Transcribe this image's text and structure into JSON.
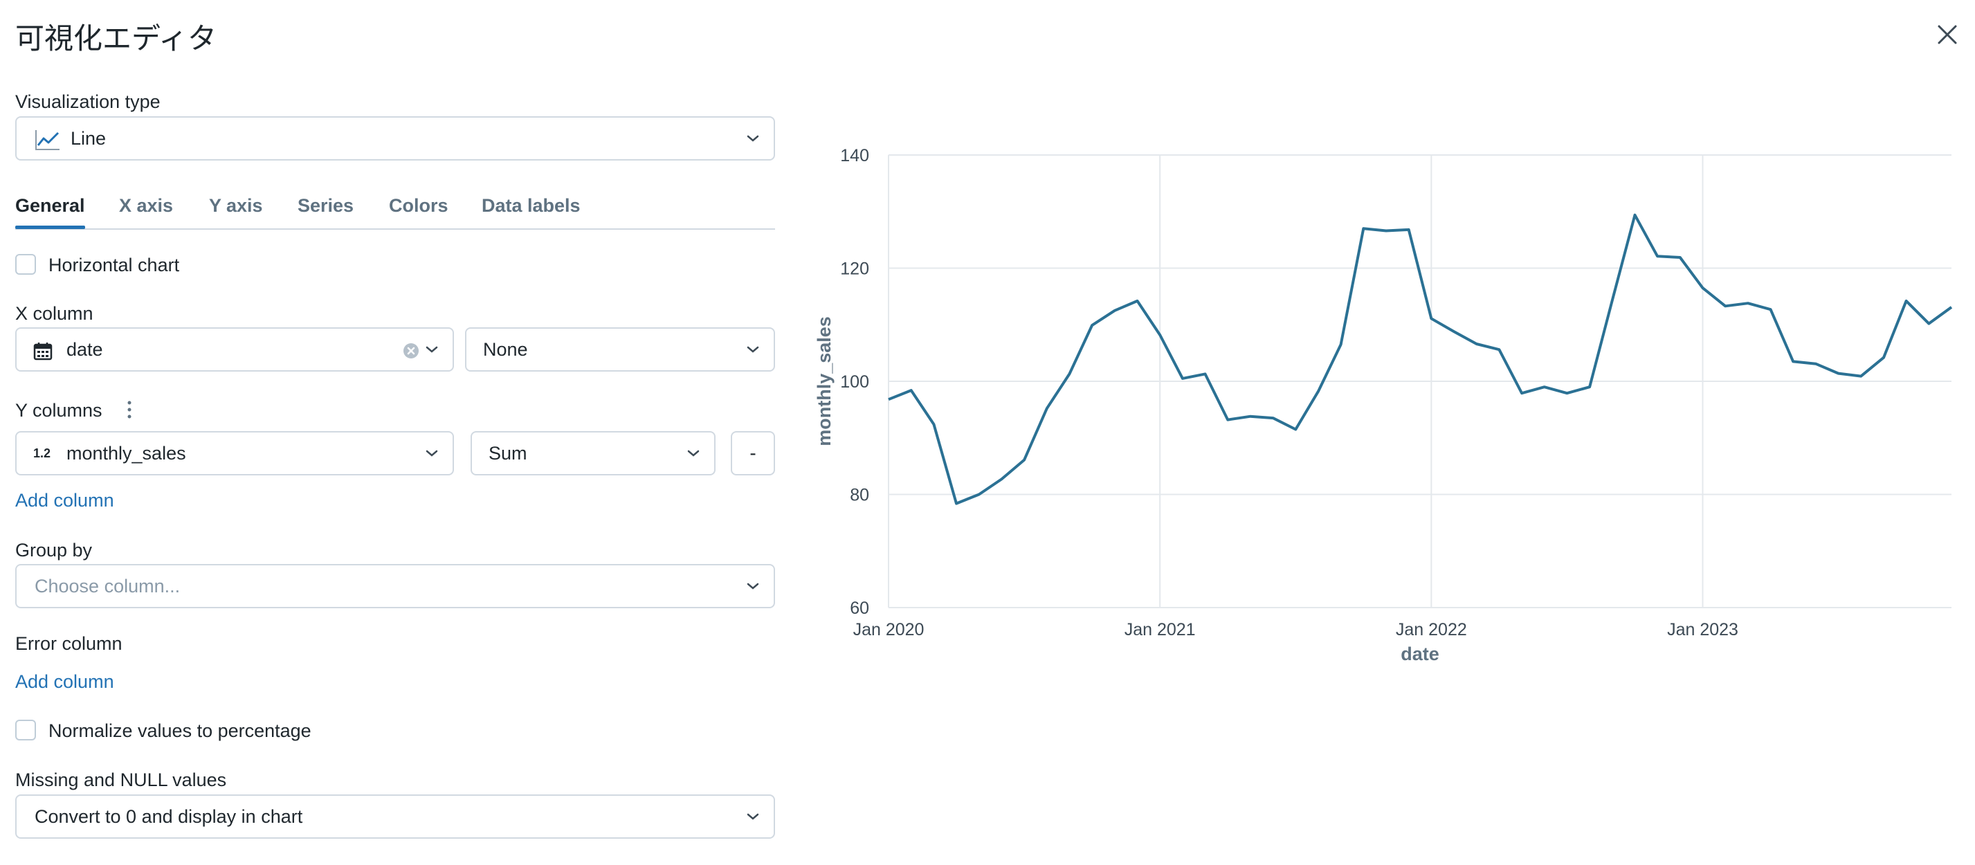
{
  "window": {
    "title": "可視化エディタ"
  },
  "icons": {
    "close": "close-icon",
    "chevron": "chevron-down-icon",
    "line_chart": "line-chart-icon",
    "calendar": "calendar-icon",
    "clear": "clear-circle-icon",
    "kebab": "kebab-icon",
    "numeric": "numeric-type-icon"
  },
  "colors": {
    "accent": "#2272b4",
    "series": "#2b7194",
    "border": "#d1d9e1"
  },
  "viz_type": {
    "label": "Visualization type",
    "value": "Line"
  },
  "tabs": [
    {
      "label": "General",
      "active": true
    },
    {
      "label": "X axis",
      "active": false
    },
    {
      "label": "Y axis",
      "active": false
    },
    {
      "label": "Series",
      "active": false
    },
    {
      "label": "Colors",
      "active": false
    },
    {
      "label": "Data labels",
      "active": false
    }
  ],
  "horizontal_chart": {
    "label": "Horizontal chart",
    "checked": false
  },
  "x_column": {
    "label": "X column",
    "value": "date",
    "transform": "None"
  },
  "y_columns": {
    "label": "Y columns",
    "type_badge": "1.2",
    "value": "monthly_sales",
    "aggregation": "Sum",
    "remove_label": "-",
    "add_label": "Add column"
  },
  "group_by": {
    "label": "Group by",
    "placeholder": "Choose column..."
  },
  "error_column": {
    "label": "Error column",
    "add_label": "Add column"
  },
  "normalize": {
    "label": "Normalize values to percentage",
    "checked": false
  },
  "missing_values": {
    "label": "Missing and NULL values",
    "value": "Convert to 0 and display in chart"
  },
  "chart_data": {
    "type": "line",
    "xlabel": "date",
    "ylabel": "monthly_sales",
    "ylim": [
      60,
      140
    ],
    "yticks": [
      60,
      80,
      100,
      120,
      140
    ],
    "xlim": [
      "2020-01",
      "2023-12"
    ],
    "xticks": [
      {
        "date": "2020-01",
        "label": "Jan 2020"
      },
      {
        "date": "2021-01",
        "label": "Jan 2021"
      },
      {
        "date": "2022-01",
        "label": "Jan 2022"
      },
      {
        "date": "2023-01",
        "label": "Jan 2023"
      }
    ],
    "grid": true,
    "series": [
      {
        "x": [
          "2020-01",
          "2020-02",
          "2020-03",
          "2020-04",
          "2020-05",
          "2020-06",
          "2020-07",
          "2020-08",
          "2020-09",
          "2020-10",
          "2020-11",
          "2020-12",
          "2021-01",
          "2021-02",
          "2021-03",
          "2021-04",
          "2021-05",
          "2021-06",
          "2021-07",
          "2021-08",
          "2021-09",
          "2021-10",
          "2021-11",
          "2021-12",
          "2022-01",
          "2022-02",
          "2022-03",
          "2022-04",
          "2022-05",
          "2022-06",
          "2022-07",
          "2022-08",
          "2022-09",
          "2022-10",
          "2022-11",
          "2022-12",
          "2023-01",
          "2023-02",
          "2023-03",
          "2023-04",
          "2023-05",
          "2023-06",
          "2023-07",
          "2023-08",
          "2023-09",
          "2023-10",
          "2023-11",
          "2023-12"
        ],
        "values": [
          96.8,
          98.4,
          92.4,
          78.4,
          80.0,
          82.7,
          86.1,
          95.2,
          101.3,
          109.9,
          112.5,
          114.2,
          108.2,
          100.5,
          101.3,
          93.2,
          93.8,
          93.5,
          91.5,
          98.2,
          106.5,
          127.0,
          126.6,
          126.8,
          111.1,
          108.8,
          106.6,
          105.6,
          97.9,
          99.0,
          97.9,
          99.0,
          114.3,
          129.4,
          122.1,
          121.9,
          116.5,
          113.3,
          113.8,
          112.7,
          103.5,
          103.1,
          101.4,
          100.9,
          104.2,
          114.2,
          110.2,
          113.1
        ]
      }
    ]
  }
}
